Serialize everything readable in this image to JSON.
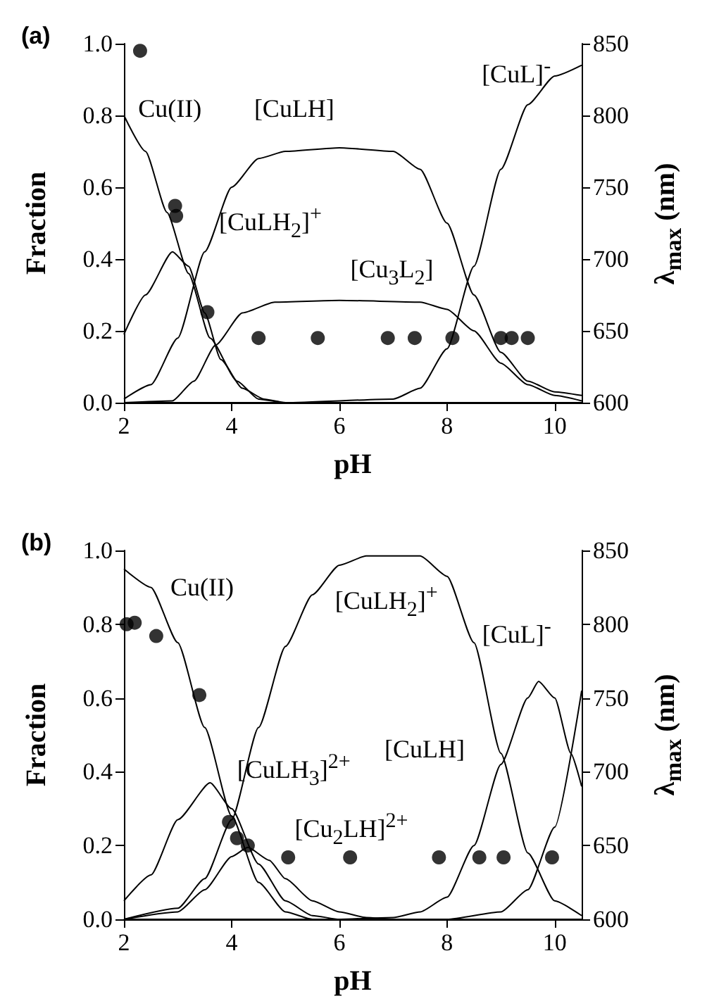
{
  "chart_data": [
    {
      "type": "line",
      "title": "(a)",
      "xlabel": "pH",
      "ylabel": "Fraction",
      "y2label": "λ$_{max}$ (nm)",
      "marker": "none",
      "grid": false,
      "xlim": [
        2,
        10.5
      ],
      "xticks": [
        2,
        4,
        6,
        8,
        10
      ],
      "ylim": [
        0,
        1
      ],
      "yticks": [
        {
          "value": 0,
          "label": "0.0"
        },
        {
          "value": 0.2,
          "label": "0.2"
        },
        {
          "value": 0.4,
          "label": "0.4"
        },
        {
          "value": 0.6,
          "label": "0.6"
        },
        {
          "value": 0.8,
          "label": "0.8"
        },
        {
          "value": 1,
          "label": "1.0"
        }
      ],
      "y2lim": [
        600,
        850
      ],
      "y2ticks": [
        600,
        650,
        700,
        750,
        800,
        850
      ],
      "series": [
        {
          "color": "#000000",
          "x": [
            2,
            2.4,
            2.8,
            3.2,
            3.6,
            4.1,
            4.5,
            5,
            6,
            10.5
          ],
          "values": [
            0.8,
            0.7,
            0.53,
            0.36,
            0.18,
            0.06,
            0.01,
            0,
            0,
            0
          ]
        },
        {
          "color": "#000000",
          "x": [
            2,
            2.4,
            2.9,
            3.2,
            3.5,
            3.8,
            4.2,
            4.6,
            5,
            10.5
          ],
          "values": [
            0.19,
            0.3,
            0.42,
            0.38,
            0.25,
            0.12,
            0.04,
            0.01,
            0,
            0
          ]
        },
        {
          "color": "#000000",
          "x": [
            2,
            2.5,
            3,
            3.5,
            4,
            4.5,
            5,
            6,
            7,
            7.5,
            8,
            8.5,
            9,
            9.5,
            10,
            10.5
          ],
          "values": [
            0.01,
            0.05,
            0.18,
            0.42,
            0.6,
            0.68,
            0.7,
            0.71,
            0.7,
            0.65,
            0.5,
            0.3,
            0.14,
            0.06,
            0.03,
            0.02
          ]
        },
        {
          "color": "#000000",
          "x": [
            2,
            2.9,
            3.3,
            3.7,
            4.2,
            4.8,
            6,
            7.5,
            8,
            8.5,
            9,
            9.5,
            10,
            10.5
          ],
          "values": [
            0,
            0.005,
            0.06,
            0.16,
            0.25,
            0.28,
            0.285,
            0.28,
            0.26,
            0.2,
            0.11,
            0.05,
            0.02,
            0.005
          ]
        },
        {
          "color": "#000000",
          "x": [
            2,
            5,
            7,
            7.5,
            8,
            8.5,
            9,
            9.5,
            10,
            10.5
          ],
          "values": [
            0,
            0,
            0.01,
            0.04,
            0.15,
            0.38,
            0.65,
            0.83,
            0.91,
            0.94
          ]
        },
        {
          "type": "scatter",
          "axis": "y2",
          "marker": "circle",
          "color": "#000000",
          "x": [
            2.3,
            2.95,
            2.97,
            3.55,
            4.5,
            5.6,
            6.9,
            7.4,
            8.1,
            9.0,
            9.2,
            9.5
          ],
          "values": [
            845,
            737,
            730,
            663,
            645,
            645,
            645,
            645,
            645,
            645,
            645,
            645
          ]
        }
      ],
      "annotations": [
        "Cu(II)",
        "[CuLH]",
        "[CuL]$^{-}$",
        "[CuLH$_{2}$]$^{+}$",
        "[Cu$_{3}$L$_{2}$]"
      ]
    },
    {
      "type": "line",
      "title": "(b)",
      "xlabel": "pH",
      "ylabel": "Fraction",
      "y2label": "λ$_{max}$ (nm)",
      "marker": "none",
      "grid": false,
      "xlim": [
        2,
        10.5
      ],
      "xticks": [
        2,
        4,
        6,
        8,
        10
      ],
      "ylim": [
        0,
        1
      ],
      "yticks": [
        {
          "value": 0,
          "label": "0.0"
        },
        {
          "value": 0.2,
          "label": "0.2"
        },
        {
          "value": 0.4,
          "label": "0.4"
        },
        {
          "value": 0.6,
          "label": "0.6"
        },
        {
          "value": 0.8,
          "label": "0.8"
        },
        {
          "value": 1,
          "label": "1.0"
        }
      ],
      "y2lim": [
        600,
        850
      ],
      "y2ticks": [
        600,
        650,
        700,
        750,
        800,
        850
      ],
      "series": [
        {
          "color": "#000000",
          "x": [
            2,
            2.5,
            3,
            3.5,
            4,
            4.5,
            5,
            5.5,
            10.5
          ],
          "values": [
            0.95,
            0.9,
            0.75,
            0.52,
            0.28,
            0.1,
            0.02,
            0,
            0
          ]
        },
        {
          "color": "#000000",
          "x": [
            2,
            2.5,
            3,
            3.6,
            4,
            4.5,
            5,
            5.5,
            6,
            10.5
          ],
          "values": [
            0.05,
            0.12,
            0.27,
            0.37,
            0.3,
            0.15,
            0.05,
            0.01,
            0,
            0
          ]
        },
        {
          "color": "#000000",
          "x": [
            2,
            3,
            3.5,
            4,
            4.3,
            4.7,
            5,
            5.5,
            6,
            6.5,
            7,
            10.5
          ],
          "values": [
            0,
            0.02,
            0.08,
            0.17,
            0.195,
            0.16,
            0.11,
            0.05,
            0.02,
            0.005,
            0,
            0
          ]
        },
        {
          "color": "#000000",
          "x": [
            2,
            3,
            3.5,
            4,
            4.5,
            5,
            5.5,
            6,
            6.5,
            7.5,
            8,
            8.5,
            9,
            9.5,
            10,
            10.5
          ],
          "values": [
            0,
            0.03,
            0.11,
            0.27,
            0.52,
            0.74,
            0.88,
            0.96,
            0.985,
            0.985,
            0.93,
            0.75,
            0.45,
            0.18,
            0.05,
            0.01
          ]
        },
        {
          "color": "#000000",
          "x": [
            2,
            6,
            7,
            7.5,
            8,
            8.5,
            9,
            9.5,
            9.7,
            10,
            10.3,
            10.5
          ],
          "values": [
            0,
            0,
            0.005,
            0.02,
            0.06,
            0.2,
            0.42,
            0.6,
            0.645,
            0.6,
            0.45,
            0.36
          ]
        },
        {
          "color": "#000000",
          "x": [
            2,
            8,
            9,
            9.5,
            10,
            10.5
          ],
          "values": [
            0,
            0,
            0.02,
            0.08,
            0.25,
            0.62
          ]
        },
        {
          "type": "scatter",
          "axis": "y2",
          "marker": "circle",
          "color": "#000000",
          "x": [
            2.05,
            2.2,
            2.6,
            3.4,
            3.95,
            4.1,
            4.3,
            5.05,
            6.2,
            7.85,
            8.6,
            9.05,
            9.95
          ],
          "values": [
            800,
            801,
            792,
            752,
            666,
            655,
            650,
            642,
            642,
            642,
            642,
            642,
            642
          ]
        }
      ],
      "annotations": [
        "Cu(II)",
        "[CuLH$_{2}$]$^{+}$",
        "[CuL]$^{-}$",
        "[CuLH]",
        "[CuLH$_{3}$]$^{2+}$",
        "[Cu$_{2}$LH]$^{2+}$"
      ]
    }
  ]
}
